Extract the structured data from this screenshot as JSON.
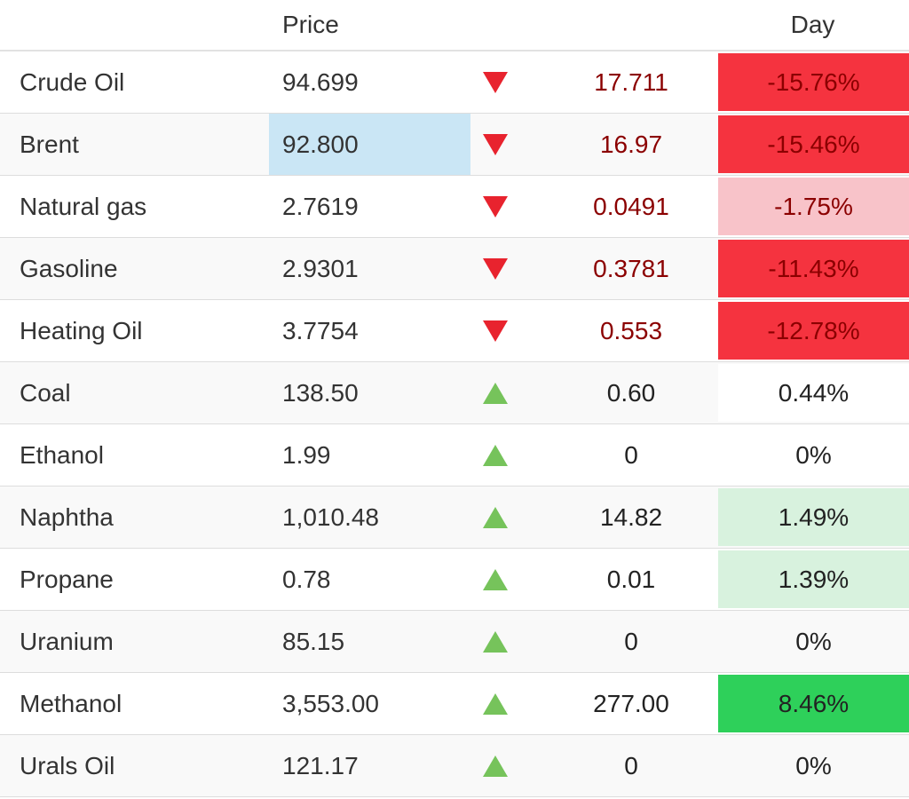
{
  "header": {
    "price_label": "Price",
    "day_label": "Day"
  },
  "colors": {
    "negative_strong": "#f5333f",
    "negative_light": "#f8c3c9",
    "positive_strong": "#2ed05a",
    "positive_light": "#d8f2de",
    "neutral_highlight": "#ffffff",
    "price_flash": "#cae6f5",
    "down_arrow": "#e8232e",
    "up_arrow": "#76c35b",
    "negative_text": "#8b0000",
    "positive_text": "#222222",
    "stripe": "#f9f9f9",
    "border": "#dddddd"
  },
  "rows": [
    {
      "name": "Crude Oil",
      "price": "94.699",
      "direction": "down",
      "change": "17.711",
      "day": "-15.76%",
      "day_bg": "strong-negative",
      "price_highlighted": false
    },
    {
      "name": "Brent",
      "price": "92.800",
      "direction": "down",
      "change": "16.97",
      "day": "-15.46%",
      "day_bg": "strong-negative",
      "price_highlighted": true
    },
    {
      "name": "Natural gas",
      "price": "2.7619",
      "direction": "down",
      "change": "0.0491",
      "day": "-1.75%",
      "day_bg": "light-negative",
      "price_highlighted": false
    },
    {
      "name": "Gasoline",
      "price": "2.9301",
      "direction": "down",
      "change": "0.3781",
      "day": "-11.43%",
      "day_bg": "strong-negative",
      "price_highlighted": false
    },
    {
      "name": "Heating Oil",
      "price": "3.7754",
      "direction": "down",
      "change": "0.553",
      "day": "-12.78%",
      "day_bg": "strong-negative",
      "price_highlighted": false
    },
    {
      "name": "Coal",
      "price": "138.50",
      "direction": "up",
      "change": "0.60",
      "day": "0.44%",
      "day_bg": "neutral",
      "price_highlighted": false
    },
    {
      "name": "Ethanol",
      "price": "1.99",
      "direction": "up",
      "change": "0",
      "day": "0%",
      "day_bg": "none",
      "price_highlighted": false
    },
    {
      "name": "Naphtha",
      "price": "1,010.48",
      "direction": "up",
      "change": "14.82",
      "day": "1.49%",
      "day_bg": "light-positive",
      "price_highlighted": false
    },
    {
      "name": "Propane",
      "price": "0.78",
      "direction": "up",
      "change": "0.01",
      "day": "1.39%",
      "day_bg": "light-positive",
      "price_highlighted": false
    },
    {
      "name": "Uranium",
      "price": "85.15",
      "direction": "up",
      "change": "0",
      "day": "0%",
      "day_bg": "none",
      "price_highlighted": false
    },
    {
      "name": "Methanol",
      "price": "3,553.00",
      "direction": "up",
      "change": "277.00",
      "day": "8.46%",
      "day_bg": "strong-positive",
      "price_highlighted": false
    },
    {
      "name": "Urals Oil",
      "price": "121.17",
      "direction": "up",
      "change": "0",
      "day": "0%",
      "day_bg": "none",
      "price_highlighted": false
    }
  ]
}
